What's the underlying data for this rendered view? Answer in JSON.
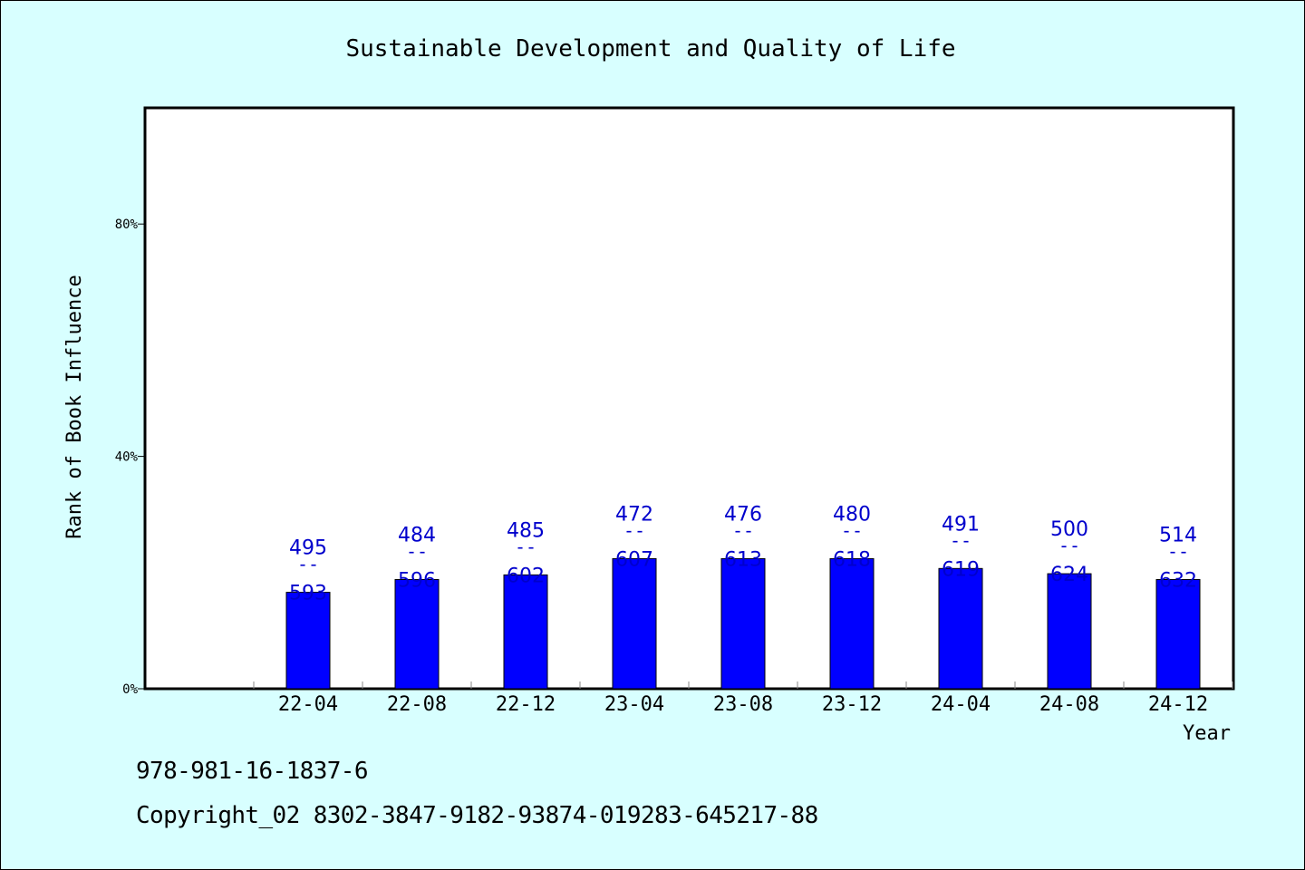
{
  "chart_data": {
    "type": "bar",
    "title": "Sustainable Development and Quality of Life",
    "xlabel": "Year",
    "ylabel": "Rank of Book Influence",
    "categories": [
      "22-04",
      "22-08",
      "22-12",
      "23-04",
      "23-08",
      "23-12",
      "24-04",
      "24-08",
      "24-12"
    ],
    "values": [
      16.6,
      18.8,
      19.6,
      22.4,
      22.4,
      22.4,
      20.7,
      19.8,
      18.8
    ],
    "labels_top": [
      "495",
      "484",
      "485",
      "472",
      "476",
      "480",
      "491",
      "500",
      "514"
    ],
    "labels_bottom": [
      "593",
      "596",
      "602",
      "607",
      "613",
      "618",
      "619",
      "624",
      "632"
    ],
    "label_separator": "--",
    "yticks": [
      "0%",
      "40%",
      "80%"
    ],
    "ytick_values": [
      0,
      40,
      80
    ],
    "ylim": [
      0,
      100
    ],
    "grid": false,
    "bar_color": "#0000ff",
    "label_color": "#0000cc",
    "background_color": "#d8ffff",
    "plot_background_color": "#ffffff"
  },
  "footer": {
    "isbn": "978-981-16-1837-6",
    "copyright": "Copyright_02 8302-3847-9182-93874-019283-645217-88"
  }
}
